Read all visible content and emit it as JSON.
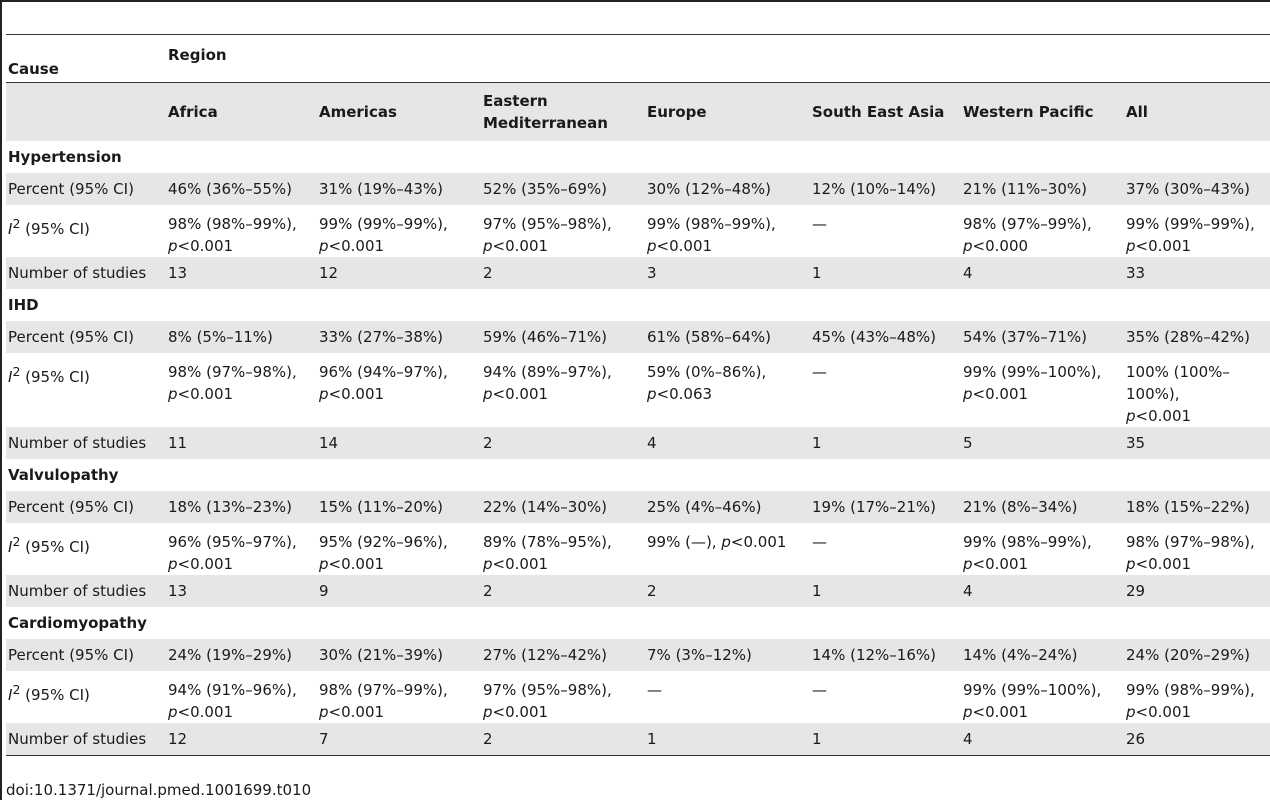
{
  "table": {
    "header_cause": "Cause",
    "header_region": "Region",
    "columns": [
      "Africa",
      "Americas",
      "Eastern Mediterranean",
      "Europe",
      "South East Asia",
      "Western Pacific",
      "All"
    ],
    "row_labels": {
      "percent": "Percent (95% CI)",
      "i2_symbol": "I",
      "i2_sup": "2",
      "i2_suffix": " (95% CI)",
      "number": "Number of studies"
    },
    "sections": [
      {
        "cause": "Hypertension",
        "percent": [
          "46% (36%–55%)",
          "31% (19%–43%)",
          "52% (35%–69%)",
          "30% (12%–48%)",
          "12% (10%–14%)",
          "21% (11%–30%)",
          "37% (30%–43%)"
        ],
        "i2": [
          [
            "98% (98%–99%),",
            "p<0.001"
          ],
          [
            "99% (99%–99%),",
            "p<0.001"
          ],
          [
            "97% (95%–98%),",
            "p<0.001"
          ],
          [
            "99% (98%–99%),",
            "p<0.001"
          ],
          [
            "—",
            ""
          ],
          [
            "98% (97%–99%),",
            "p<0.000"
          ],
          [
            "99% (99%–99%),",
            "p<0.001"
          ]
        ],
        "studies": [
          "13",
          "12",
          "2",
          "3",
          "1",
          "4",
          "33"
        ]
      },
      {
        "cause": "IHD",
        "percent": [
          "8% (5%–11%)",
          "33% (27%–38%)",
          "59% (46%–71%)",
          "61% (58%–64%)",
          "45% (43%–48%)",
          "54% (37%–71%)",
          "35% (28%–42%)"
        ],
        "i2": [
          [
            "98% (97%–98%),",
            "p<0.001"
          ],
          [
            "96% (94%–97%),",
            "p<0.001"
          ],
          [
            "94% (89%–97%),",
            "p<0.001"
          ],
          [
            "59% (0%–86%),",
            "p<0.063"
          ],
          [
            "—",
            ""
          ],
          [
            "99% (99%–100%),",
            "p<0.001"
          ],
          [
            "100% (100%–",
            "100%),",
            "p<0.001"
          ]
        ],
        "studies": [
          "11",
          "14",
          "2",
          "4",
          "1",
          "5",
          "35"
        ]
      },
      {
        "cause": "Valvulopathy",
        "percent": [
          "18% (13%–23%)",
          "15% (11%–20%)",
          "22% (14%–30%)",
          "25% (4%–46%)",
          "19% (17%–21%)",
          "21% (8%–34%)",
          "18% (15%–22%)"
        ],
        "i2": [
          [
            "96% (95%–97%),",
            "p<0.001"
          ],
          [
            "95% (92%–96%),",
            "p<0.001"
          ],
          [
            "89% (78%–95%),",
            "p<0.001"
          ],
          [
            "99% (—), p<0.001"
          ],
          [
            "—",
            ""
          ],
          [
            "99% (98%–99%),",
            "p<0.001"
          ],
          [
            "98% (97%–98%),",
            "p<0.001"
          ]
        ],
        "studies": [
          "13",
          "9",
          "2",
          "2",
          "1",
          "4",
          "29"
        ]
      },
      {
        "cause": "Cardiomyopathy",
        "percent": [
          "24% (19%–29%)",
          "30% (21%–39%)",
          "27% (12%–42%)",
          "7% (3%–12%)",
          "14% (12%–16%)",
          "14% (4%–24%)",
          "24% (20%–29%)"
        ],
        "i2": [
          [
            "94% (91%–96%),",
            "p<0.001"
          ],
          [
            "98% (97%–99%),",
            "p<0.001"
          ],
          [
            "97% (95%–98%),",
            "p<0.001"
          ],
          [
            "—",
            ""
          ],
          [
            "—",
            ""
          ],
          [
            "99% (99%–100%),",
            "p<0.001"
          ],
          [
            "99% (98%–99%),",
            "p<0.001"
          ]
        ],
        "studies": [
          "12",
          "7",
          "2",
          "1",
          "1",
          "4",
          "26"
        ]
      }
    ]
  },
  "caption": "doi:10.1371/journal.pmed.1001699.t010"
}
